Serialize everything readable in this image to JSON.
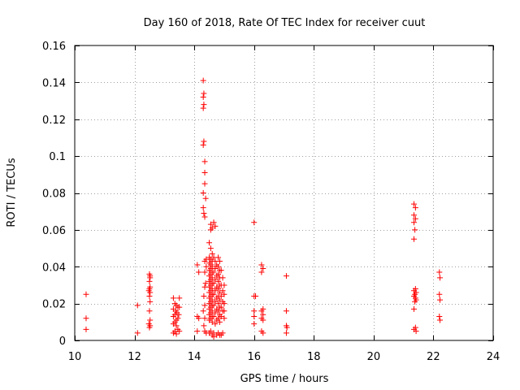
{
  "chart_data": {
    "type": "scatter",
    "title": "Day 160 of 2018, Rate Of TEC Index for receiver cuut",
    "xlabel": "GPS time / hours",
    "ylabel": "ROTI / TECUs",
    "xlim": [
      10,
      24
    ],
    "ylim": [
      0,
      0.16
    ],
    "grid": true,
    "x_ticks": [
      10,
      12,
      14,
      16,
      18,
      20,
      22,
      24
    ],
    "y_ticks": [
      0,
      0.02,
      0.04,
      0.06,
      0.08,
      0.1,
      0.12,
      0.14,
      0.16
    ],
    "x_tick_labels": [
      "10",
      "12",
      "14",
      "16",
      "18",
      "20",
      "22",
      "24"
    ],
    "y_tick_labels": [
      "0",
      "0.02",
      "0.04",
      "0.06",
      "0.08",
      "0.1",
      "0.12",
      "0.14",
      "0.16"
    ],
    "marker": "+",
    "marker_color": "#ff0000",
    "series": [
      {
        "name": "ROTI",
        "points": [
          [
            10.38,
            0.025
          ],
          [
            10.38,
            0.012
          ],
          [
            10.38,
            0.006
          ],
          [
            12.1,
            0.019
          ],
          [
            12.1,
            0.004
          ],
          [
            12.5,
            0.036
          ],
          [
            12.52,
            0.034
          ],
          [
            12.5,
            0.032
          ],
          [
            12.52,
            0.029
          ],
          [
            12.48,
            0.027
          ],
          [
            12.52,
            0.026
          ],
          [
            12.5,
            0.024
          ],
          [
            12.52,
            0.021
          ],
          [
            12.5,
            0.016
          ],
          [
            12.52,
            0.011
          ],
          [
            12.48,
            0.009
          ],
          [
            12.52,
            0.008
          ],
          [
            12.5,
            0.007
          ],
          [
            12.52,
            0.035
          ],
          [
            12.5,
            0.028
          ],
          [
            13.3,
            0.023
          ],
          [
            13.35,
            0.02
          ],
          [
            13.4,
            0.019
          ],
          [
            13.45,
            0.018
          ],
          [
            13.3,
            0.017
          ],
          [
            13.38,
            0.016
          ],
          [
            13.42,
            0.015
          ],
          [
            13.35,
            0.014
          ],
          [
            13.3,
            0.013
          ],
          [
            13.45,
            0.012
          ],
          [
            13.4,
            0.011
          ],
          [
            13.35,
            0.01
          ],
          [
            13.3,
            0.009
          ],
          [
            13.4,
            0.008
          ],
          [
            13.45,
            0.006
          ],
          [
            13.35,
            0.005
          ],
          [
            13.3,
            0.004
          ],
          [
            13.4,
            0.0035
          ],
          [
            13.5,
            0.023
          ],
          [
            13.5,
            0.018
          ],
          [
            13.48,
            0.014
          ],
          [
            13.5,
            0.005
          ],
          [
            14.1,
            0.041
          ],
          [
            14.15,
            0.037
          ],
          [
            14.1,
            0.013
          ],
          [
            14.15,
            0.012
          ],
          [
            14.1,
            0.005
          ],
          [
            14.3,
            0.141
          ],
          [
            14.32,
            0.134
          ],
          [
            14.3,
            0.132
          ],
          [
            14.32,
            0.128
          ],
          [
            14.3,
            0.126
          ],
          [
            14.32,
            0.108
          ],
          [
            14.3,
            0.106
          ],
          [
            14.35,
            0.097
          ],
          [
            14.35,
            0.091
          ],
          [
            14.35,
            0.085
          ],
          [
            14.3,
            0.08
          ],
          [
            14.38,
            0.077
          ],
          [
            14.3,
            0.072
          ],
          [
            14.32,
            0.069
          ],
          [
            14.35,
            0.067
          ],
          [
            14.4,
            0.044
          ],
          [
            14.35,
            0.043
          ],
          [
            14.4,
            0.04
          ],
          [
            14.35,
            0.037
          ],
          [
            14.38,
            0.031
          ],
          [
            14.35,
            0.029
          ],
          [
            14.32,
            0.024
          ],
          [
            14.35,
            0.019
          ],
          [
            14.3,
            0.016
          ],
          [
            14.35,
            0.012
          ],
          [
            14.32,
            0.008
          ],
          [
            14.35,
            0.005
          ],
          [
            14.4,
            0.004
          ],
          [
            14.55,
            0.063
          ],
          [
            14.6,
            0.061
          ],
          [
            14.55,
            0.06
          ],
          [
            14.5,
            0.053
          ],
          [
            14.55,
            0.05
          ],
          [
            14.6,
            0.047
          ],
          [
            14.5,
            0.045
          ],
          [
            14.55,
            0.044
          ],
          [
            14.6,
            0.043
          ],
          [
            14.5,
            0.042
          ],
          [
            14.55,
            0.041
          ],
          [
            14.6,
            0.04
          ],
          [
            14.55,
            0.039
          ],
          [
            14.5,
            0.038
          ],
          [
            14.6,
            0.037
          ],
          [
            14.55,
            0.036
          ],
          [
            14.5,
            0.035
          ],
          [
            14.6,
            0.034
          ],
          [
            14.55,
            0.033
          ],
          [
            14.5,
            0.032
          ],
          [
            14.6,
            0.031
          ],
          [
            14.55,
            0.03
          ],
          [
            14.5,
            0.029
          ],
          [
            14.6,
            0.028
          ],
          [
            14.55,
            0.027
          ],
          [
            14.5,
            0.026
          ],
          [
            14.6,
            0.025
          ],
          [
            14.55,
            0.024
          ],
          [
            14.5,
            0.023
          ],
          [
            14.6,
            0.022
          ],
          [
            14.55,
            0.021
          ],
          [
            14.5,
            0.02
          ],
          [
            14.6,
            0.019
          ],
          [
            14.55,
            0.018
          ],
          [
            14.5,
            0.017
          ],
          [
            14.6,
            0.016
          ],
          [
            14.55,
            0.015
          ],
          [
            14.5,
            0.014
          ],
          [
            14.6,
            0.013
          ],
          [
            14.55,
            0.012
          ],
          [
            14.5,
            0.011
          ],
          [
            14.6,
            0.01
          ],
          [
            14.55,
            0.005
          ],
          [
            14.5,
            0.004
          ],
          [
            14.6,
            0.003
          ],
          [
            14.65,
            0.002
          ],
          [
            14.65,
            0.064
          ],
          [
            14.7,
            0.062
          ],
          [
            14.65,
            0.045
          ],
          [
            14.7,
            0.043
          ],
          [
            14.75,
            0.041
          ],
          [
            14.7,
            0.039
          ],
          [
            14.65,
            0.037
          ],
          [
            14.75,
            0.035
          ],
          [
            14.7,
            0.033
          ],
          [
            14.65,
            0.031
          ],
          [
            14.75,
            0.029
          ],
          [
            14.7,
            0.027
          ],
          [
            14.65,
            0.025
          ],
          [
            14.75,
            0.023
          ],
          [
            14.7,
            0.021
          ],
          [
            14.65,
            0.019
          ],
          [
            14.75,
            0.017
          ],
          [
            14.7,
            0.015
          ],
          [
            14.65,
            0.013
          ],
          [
            14.75,
            0.011
          ],
          [
            14.7,
            0.009
          ],
          [
            14.65,
            0.004
          ],
          [
            14.75,
            0.003
          ],
          [
            14.8,
            0.045
          ],
          [
            14.85,
            0.043
          ],
          [
            14.8,
            0.04
          ],
          [
            14.85,
            0.038
          ],
          [
            14.8,
            0.036
          ],
          [
            14.85,
            0.034
          ],
          [
            14.8,
            0.032
          ],
          [
            14.85,
            0.03
          ],
          [
            14.8,
            0.028
          ],
          [
            14.85,
            0.026
          ],
          [
            14.8,
            0.024
          ],
          [
            14.85,
            0.022
          ],
          [
            14.8,
            0.02
          ],
          [
            14.85,
            0.018
          ],
          [
            14.8,
            0.016
          ],
          [
            14.85,
            0.014
          ],
          [
            14.8,
            0.012
          ],
          [
            14.85,
            0.01
          ],
          [
            14.8,
            0.004
          ],
          [
            14.85,
            0.003
          ],
          [
            14.9,
            0.038
          ],
          [
            14.95,
            0.034
          ],
          [
            14.9,
            0.03
          ],
          [
            14.95,
            0.027
          ],
          [
            14.9,
            0.024
          ],
          [
            14.95,
            0.021
          ],
          [
            14.9,
            0.018
          ],
          [
            14.95,
            0.016
          ],
          [
            14.9,
            0.013
          ],
          [
            14.95,
            0.004
          ],
          [
            14.9,
            0.003
          ],
          [
            15.0,
            0.03
          ],
          [
            15.0,
            0.025
          ],
          [
            15.0,
            0.02
          ],
          [
            15.0,
            0.016
          ],
          [
            15.0,
            0.012
          ],
          [
            16.0,
            0.064
          ],
          [
            16.0,
            0.024
          ],
          [
            16.05,
            0.024
          ],
          [
            16.0,
            0.016
          ],
          [
            16.0,
            0.013
          ],
          [
            16.0,
            0.009
          ],
          [
            16.25,
            0.041
          ],
          [
            16.3,
            0.039
          ],
          [
            16.25,
            0.037
          ],
          [
            16.3,
            0.017
          ],
          [
            16.25,
            0.016
          ],
          [
            16.3,
            0.014
          ],
          [
            16.25,
            0.012
          ],
          [
            16.3,
            0.011
          ],
          [
            16.25,
            0.005
          ],
          [
            16.3,
            0.004
          ],
          [
            17.08,
            0.035
          ],
          [
            17.08,
            0.016
          ],
          [
            17.08,
            0.008
          ],
          [
            17.1,
            0.007
          ],
          [
            17.08,
            0.004
          ],
          [
            21.35,
            0.074
          ],
          [
            21.4,
            0.072
          ],
          [
            21.35,
            0.068
          ],
          [
            21.4,
            0.066
          ],
          [
            21.35,
            0.064
          ],
          [
            21.38,
            0.06
          ],
          [
            21.35,
            0.055
          ],
          [
            21.4,
            0.028
          ],
          [
            21.35,
            0.027
          ],
          [
            21.42,
            0.026
          ],
          [
            21.38,
            0.025
          ],
          [
            21.35,
            0.024
          ],
          [
            21.4,
            0.023
          ],
          [
            21.42,
            0.022
          ],
          [
            21.38,
            0.021
          ],
          [
            21.35,
            0.017
          ],
          [
            21.4,
            0.007
          ],
          [
            21.35,
            0.006
          ],
          [
            21.42,
            0.005
          ],
          [
            22.2,
            0.037
          ],
          [
            22.22,
            0.034
          ],
          [
            22.2,
            0.025
          ],
          [
            22.22,
            0.022
          ],
          [
            22.2,
            0.013
          ],
          [
            22.22,
            0.011
          ]
        ]
      }
    ]
  }
}
